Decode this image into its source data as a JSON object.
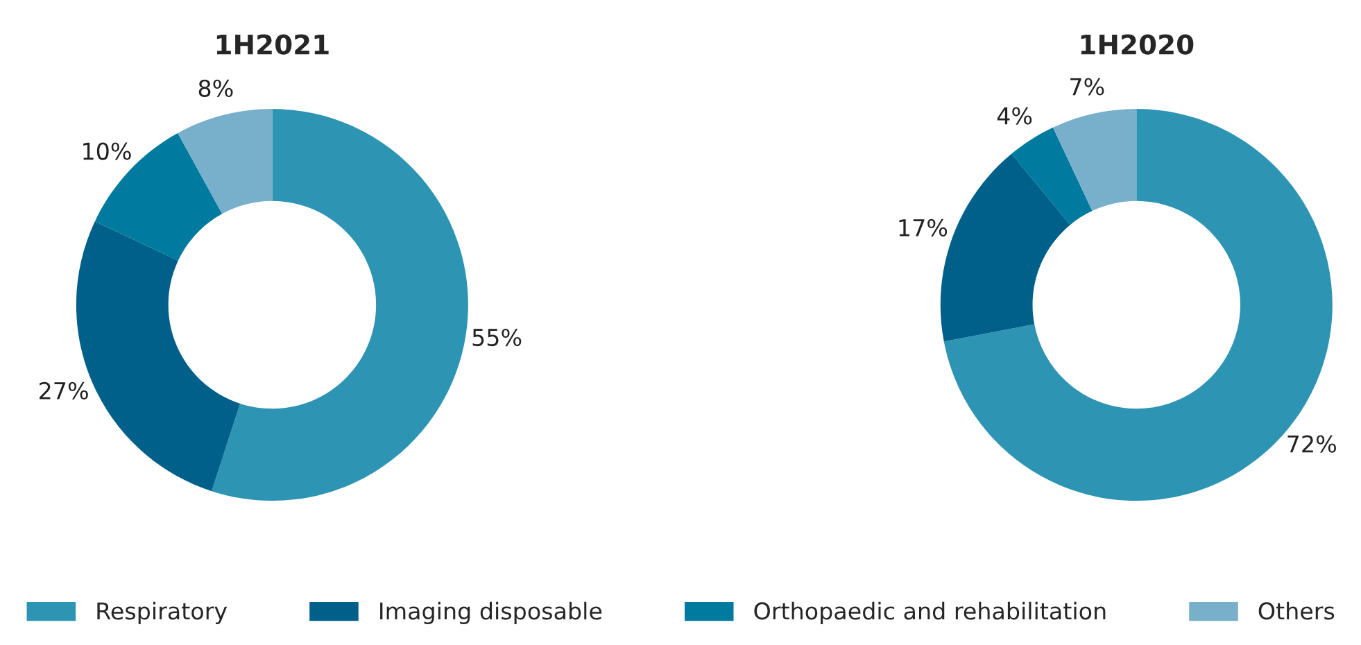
{
  "chart_data": [
    {
      "type": "donut",
      "title": "1H2021",
      "categories": [
        "Respiratory",
        "Imaging disposable",
        "Orthopaedic and rehabilitation",
        "Others"
      ],
      "values": [
        55,
        27,
        10,
        8
      ],
      "value_labels": [
        "55%",
        "27%",
        "10%",
        "8%"
      ],
      "colors": [
        "#2e94b4",
        "#00608a",
        "#007a9e",
        "#78b0cc"
      ],
      "legend": "bottom"
    },
    {
      "type": "donut",
      "title": "1H2020",
      "categories": [
        null,
        null,
        null,
        null
      ],
      "values": [
        72,
        17,
        4,
        7
      ],
      "value_labels": [
        "72%",
        "17%",
        "4%",
        "7%"
      ],
      "colors": [
        "#2e94b4",
        "#00608a",
        "#007a9e",
        "#78b0cc"
      ]
    }
  ]
}
